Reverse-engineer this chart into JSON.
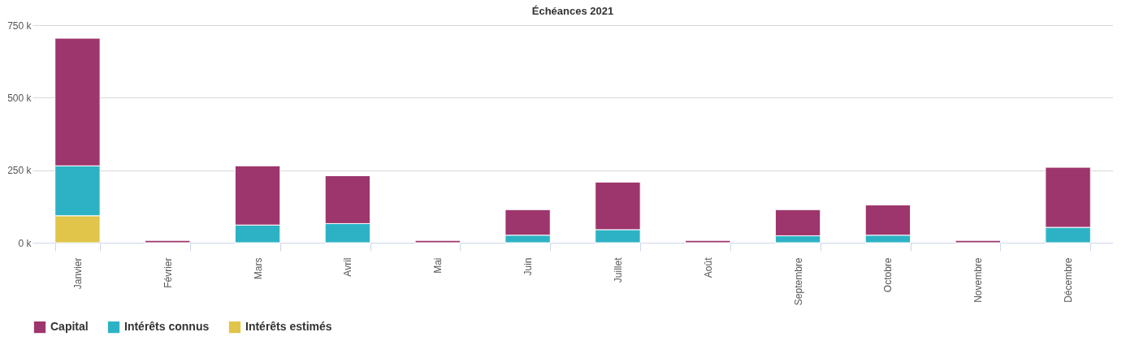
{
  "chart_data": {
    "type": "bar",
    "title": "Échéances 2021",
    "stacked": true,
    "grid": "y",
    "legend": "bottom",
    "categories": [
      "Janvier",
      "Février",
      "Mars",
      "Avril",
      "Mai",
      "Juin",
      "Juillet",
      "Août",
      "Septembre",
      "Octobre",
      "Novembre",
      "Décembre"
    ],
    "ylim": [
      0,
      750000
    ],
    "yticks": [
      {
        "value": 0,
        "label": "0 k"
      },
      {
        "value": 250000,
        "label": "250 k"
      },
      {
        "value": 500000,
        "label": "500 k"
      },
      {
        "value": 750000,
        "label": "750 k"
      }
    ],
    "series": [
      {
        "name": "Intérêts estimés",
        "color": "#e0c54a",
        "values": [
          93000,
          0,
          0,
          0,
          0,
          0,
          0,
          0,
          0,
          0,
          0,
          0
        ]
      },
      {
        "name": "Intérêts connus",
        "color": "#2db2c5",
        "values": [
          172000,
          0,
          61000,
          66000,
          0,
          26000,
          45000,
          0,
          24000,
          26000,
          0,
          53000
        ]
      },
      {
        "name": "Capital",
        "color": "#9d366c",
        "values": [
          440000,
          8000,
          204000,
          165000,
          8000,
          88000,
          164000,
          8000,
          90000,
          104000,
          8000,
          207000
        ]
      }
    ]
  }
}
